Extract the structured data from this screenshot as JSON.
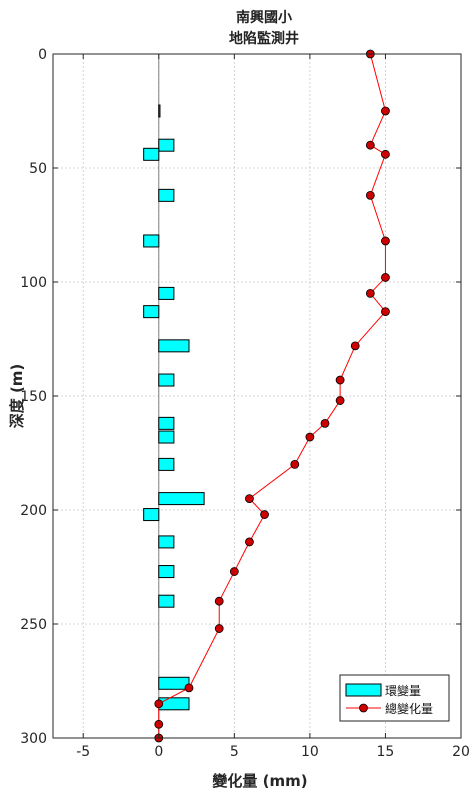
{
  "chart_data": {
    "type": "bar+line",
    "orientation": "horizontal",
    "title": [
      "南興國小",
      "地陷監測井"
    ],
    "xlabel": "變化量 (mm)",
    "ylabel": "深度 (m)",
    "xlim": [
      -7,
      20
    ],
    "ylim": [
      300,
      0
    ],
    "y_reversed": true,
    "xticks": [
      -5,
      0,
      5,
      10,
      15,
      20
    ],
    "yticks": [
      0,
      50,
      100,
      150,
      200,
      250,
      300
    ],
    "grid": true,
    "legend_position": "bottom-right",
    "series": [
      {
        "name": "環變量",
        "kind": "bar",
        "color": "#00ffff",
        "edge_color": "#000000",
        "points": [
          {
            "depth": 25,
            "value": 0.05
          },
          {
            "depth": 40,
            "value": 1
          },
          {
            "depth": 44,
            "value": -1
          },
          {
            "depth": 62,
            "value": 1
          },
          {
            "depth": 82,
            "value": -1
          },
          {
            "depth": 105,
            "value": 1
          },
          {
            "depth": 113,
            "value": -1
          },
          {
            "depth": 128,
            "value": 2
          },
          {
            "depth": 143,
            "value": 1
          },
          {
            "depth": 162,
            "value": 1
          },
          {
            "depth": 168,
            "value": 1
          },
          {
            "depth": 180,
            "value": 1
          },
          {
            "depth": 195,
            "value": 3
          },
          {
            "depth": 202,
            "value": -1
          },
          {
            "depth": 214,
            "value": 1
          },
          {
            "depth": 227,
            "value": 1
          },
          {
            "depth": 240,
            "value": 1
          },
          {
            "depth": 276,
            "value": 2
          },
          {
            "depth": 285,
            "value": 2
          }
        ]
      },
      {
        "name": "總變化量",
        "kind": "line",
        "color": "#ff0000",
        "marker_color": "#cc0000",
        "points": [
          {
            "depth": 0,
            "value": 14
          },
          {
            "depth": 25,
            "value": 15
          },
          {
            "depth": 40,
            "value": 14
          },
          {
            "depth": 44,
            "value": 15
          },
          {
            "depth": 62,
            "value": 14
          },
          {
            "depth": 82,
            "value": 15
          },
          {
            "depth": 98,
            "value": 15
          },
          {
            "depth": 105,
            "value": 14
          },
          {
            "depth": 113,
            "value": 15
          },
          {
            "depth": 128,
            "value": 13
          },
          {
            "depth": 143,
            "value": 12
          },
          {
            "depth": 152,
            "value": 12
          },
          {
            "depth": 162,
            "value": 11
          },
          {
            "depth": 168,
            "value": 10
          },
          {
            "depth": 180,
            "value": 9
          },
          {
            "depth": 195,
            "value": 6
          },
          {
            "depth": 202,
            "value": 7
          },
          {
            "depth": 214,
            "value": 6
          },
          {
            "depth": 227,
            "value": 5
          },
          {
            "depth": 240,
            "value": 4
          },
          {
            "depth": 252,
            "value": 4
          },
          {
            "depth": 278,
            "value": 2
          },
          {
            "depth": 285,
            "value": 0
          },
          {
            "depth": 294,
            "value": 0
          },
          {
            "depth": 300,
            "value": 0
          }
        ]
      }
    ]
  }
}
